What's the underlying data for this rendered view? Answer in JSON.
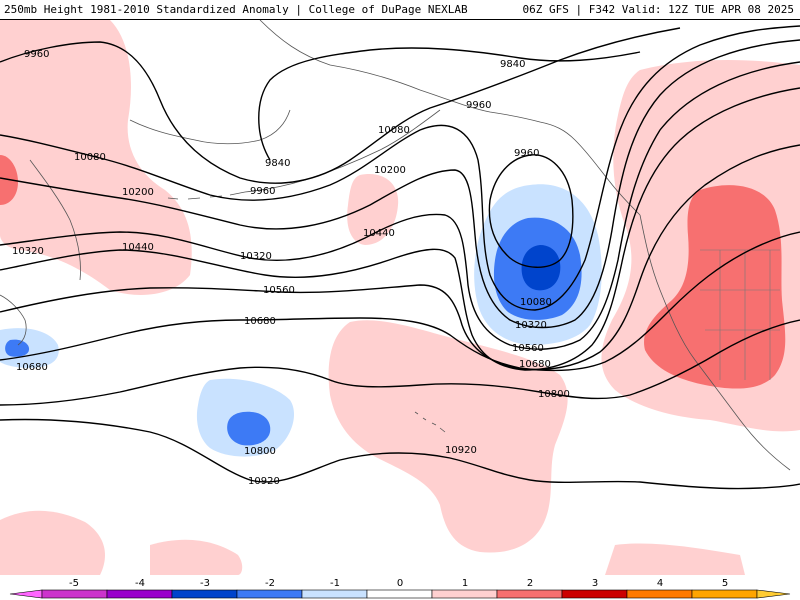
{
  "header": {
    "left_title": "250mb Height 1981-2010 Standardized Anomaly | College of DuPage NEXLAB",
    "right_title": "06Z GFS | F342 Valid: 12Z TUE APR 08 2025"
  },
  "colors": {
    "neg5": "#ff66ff",
    "neg4": "#9900cc",
    "neg3": "#0044cc",
    "neg2": "#3d7af5",
    "neg1": "#c9e2ff",
    "zero": "#ffffff",
    "pos1": "#ffd0d0",
    "pos2": "#f77070",
    "pos3": "#cc0000",
    "pos4": "#8b0000",
    "pos5": "#ffa500",
    "contour": "#000000",
    "coast": "#555555"
  },
  "contour_labels": [
    {
      "text": "9840",
      "id": "c9840a"
    },
    {
      "text": "9840",
      "id": "c9840b"
    },
    {
      "text": "9960",
      "id": "c9960a"
    },
    {
      "text": "9960",
      "id": "c9960b"
    },
    {
      "text": "9960",
      "id": "c9960c"
    },
    {
      "text": "9960",
      "id": "c9960d"
    },
    {
      "text": "10080",
      "id": "c10080a"
    },
    {
      "text": "10080",
      "id": "c10080b"
    },
    {
      "text": "10080",
      "id": "c10080c"
    },
    {
      "text": "10200",
      "id": "c10200a"
    },
    {
      "text": "10200",
      "id": "c10200b"
    },
    {
      "text": "10320",
      "id": "c10320a"
    },
    {
      "text": "10320",
      "id": "c10320b"
    },
    {
      "text": "10320",
      "id": "c10320c"
    },
    {
      "text": "10440",
      "id": "c10440a"
    },
    {
      "text": "10440",
      "id": "c10440b"
    },
    {
      "text": "10560",
      "id": "c10560a"
    },
    {
      "text": "10560",
      "id": "c10560b"
    },
    {
      "text": "10680",
      "id": "c10680a"
    },
    {
      "text": "10680",
      "id": "c10680b"
    },
    {
      "text": "10680",
      "id": "c10680c"
    },
    {
      "text": "10800",
      "id": "c10800a"
    },
    {
      "text": "10800",
      "id": "c10800b"
    },
    {
      "text": "10920",
      "id": "c10920a"
    },
    {
      "text": "10920",
      "id": "c10920b"
    }
  ],
  "legend": {
    "ticks": [
      "-5",
      "-4",
      "-3",
      "-2",
      "-1",
      "0",
      "1",
      "2",
      "3",
      "4",
      "5"
    ]
  }
}
